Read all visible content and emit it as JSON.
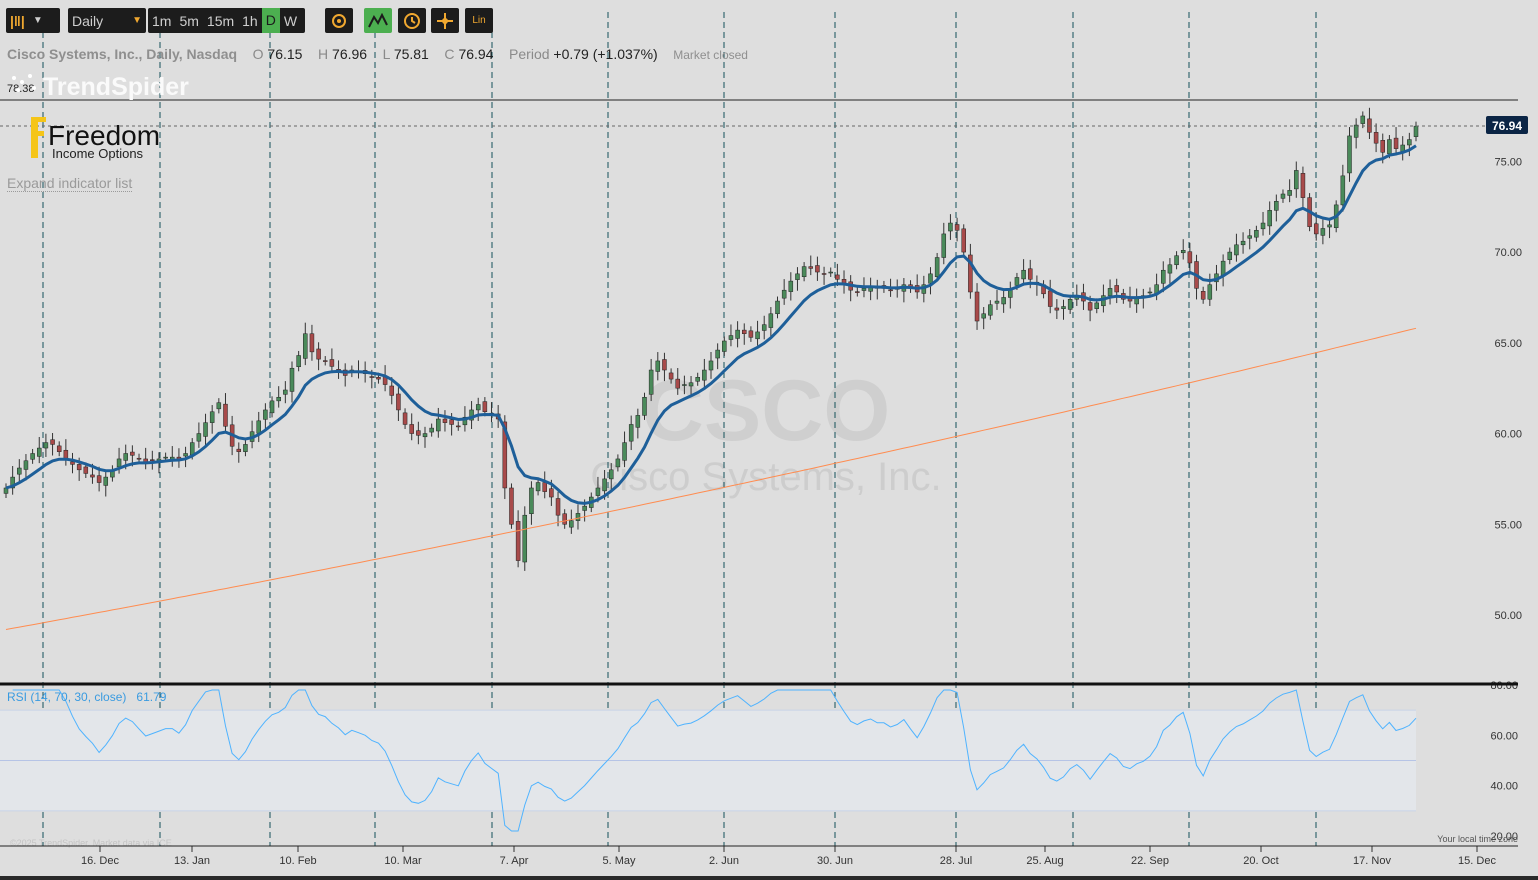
{
  "toolbar": {
    "interval": "Daily",
    "timeframes": [
      "1m",
      "5m",
      "15m",
      "1h",
      "D",
      "W"
    ],
    "active_timeframe": "D",
    "lin_label": "Lin"
  },
  "info": {
    "name": "Cisco Systems, Inc., Daily, Nasdaq",
    "o_label": "O",
    "o_value": "76.15",
    "h_label": "H",
    "h_value": "76.96",
    "l_label": "L",
    "l_value": "75.81",
    "c_label": "C",
    "c_value": "76.94",
    "period_label": "Period",
    "period_value": "+0.79 (+1.037%)",
    "status": "Market closed"
  },
  "overlay": {
    "brand": "TrendSpider",
    "freedom_title": "Freedom",
    "freedom_subtitle": "Income Options",
    "expand_indicators": "Expand indicator list",
    "watermark_symbol": "CSCO",
    "watermark_company": "Cisco Systems, Inc.",
    "copyright": "©2025 TrendSpider. Market data via ICE",
    "local_time_note": "Your local time zone"
  },
  "colors": {
    "accent_green": "#4caf50",
    "icon_orange": "#f0a830",
    "candle_green": "#4a8a5a",
    "candle_red": "#a84a4a",
    "ma_blue": "#1e5f99",
    "ma_orange": "#ff8c50",
    "rsi_blue": "#4fb3ff",
    "divider": "#14505a"
  },
  "chart_data": {
    "type": "candlestick",
    "symbol": "CSCO",
    "interval": "Daily",
    "ylim": [
      45,
      82
    ],
    "y_ticks": [
      "75.00",
      "70.00",
      "65.00",
      "60.00",
      "55.00",
      "50.00"
    ],
    "x_ticks": [
      "16. Dec",
      "13. Jan",
      "10. Feb",
      "10. Mar",
      "7. Apr",
      "5. May",
      "2. Jun",
      "30. Jun",
      "28. Jul",
      "25. Aug",
      "22. Sep",
      "20. Oct",
      "17. Nov",
      "15. Dec"
    ],
    "horizontal_line": {
      "label": "78.38",
      "value": 78.38
    },
    "last_price": {
      "label": "76.94",
      "value": 76.94
    },
    "close_series": [
      57.0,
      57.6,
      58.1,
      58.5,
      58.9,
      59.2,
      59.5,
      59.4,
      59.0,
      58.6,
      58.3,
      58.0,
      57.8,
      57.6,
      57.3,
      57.6,
      58.0,
      58.6,
      58.9,
      58.8,
      58.6,
      58.4,
      58.5,
      58.6,
      58.7,
      58.7,
      58.6,
      58.9,
      59.5,
      60.0,
      60.6,
      61.2,
      61.7,
      60.4,
      59.3,
      59.0,
      59.4,
      60.1,
      60.7,
      61.3,
      61.8,
      62.0,
      62.4,
      63.6,
      64.3,
      65.5,
      64.5,
      64.1,
      64.0,
      63.7,
      63.5,
      63.2,
      63.5,
      63.4,
      63.3,
      63.1,
      63.0,
      62.7,
      62.1,
      61.3,
      60.5,
      60.0,
      59.9,
      60.0,
      60.3,
      60.8,
      60.6,
      60.5,
      60.4,
      60.9,
      61.3,
      61.6,
      61.2,
      61.0,
      60.8,
      57.0,
      55.0,
      53.0,
      55.5,
      57.0,
      57.3,
      56.8,
      56.5,
      55.5,
      55.0,
      55.2,
      55.6,
      56.0,
      56.5,
      57.0,
      57.5,
      58.0,
      58.6,
      59.5,
      60.5,
      61.0,
      62.0,
      63.5,
      64.0,
      63.5,
      63.0,
      62.5,
      62.7,
      62.8,
      63.1,
      63.5,
      64.0,
      64.6,
      65.1,
      65.4,
      65.7,
      65.5,
      65.3,
      65.6,
      66.0,
      66.6,
      67.3,
      67.9,
      68.4,
      68.8,
      69.2,
      69.1,
      68.9,
      68.8,
      68.9,
      68.5,
      68.2,
      67.9,
      67.8,
      68.0,
      68.1,
      68.0,
      68.0,
      67.9,
      68.0,
      68.2,
      68.0,
      67.8,
      68.2,
      68.8,
      69.7,
      71.0,
      71.6,
      71.2,
      70.0,
      67.8,
      66.2,
      66.6,
      67.1,
      67.3,
      67.5,
      68.0,
      68.6,
      69.0,
      68.5,
      68.2,
      67.7,
      67.0,
      66.8,
      67.0,
      67.4,
      67.6,
      67.3,
      66.8,
      67.2,
      67.6,
      68.0,
      67.8,
      67.4,
      67.3,
      67.5,
      67.6,
      67.8,
      68.2,
      69.0,
      69.3,
      69.8,
      70.1,
      69.4,
      68.0,
      67.4,
      68.2,
      68.8,
      69.5,
      70.0,
      70.4,
      70.6,
      70.9,
      71.2,
      71.6,
      72.3,
      72.8,
      73.2,
      73.4,
      74.5,
      73.0,
      71.4,
      71.0,
      71.3,
      71.5,
      72.6,
      74.2,
      76.4,
      77.0,
      77.5,
      76.6,
      76.0,
      75.5,
      76.2,
      75.7,
      75.9,
      76.2,
      76.94
    ],
    "rsi": {
      "label": "RSI (14, 70, 30, close)",
      "value": "61.79",
      "levels": [
        30,
        70
      ],
      "ylim": [
        20,
        80
      ],
      "ticks": [
        "80.00",
        "60.00",
        "40.00",
        "20.00"
      ]
    },
    "moving_averages": [
      {
        "color": "#1e5f99",
        "kind": "short-term"
      },
      {
        "color": "#ff8c50",
        "kind": "long-term"
      }
    ]
  }
}
